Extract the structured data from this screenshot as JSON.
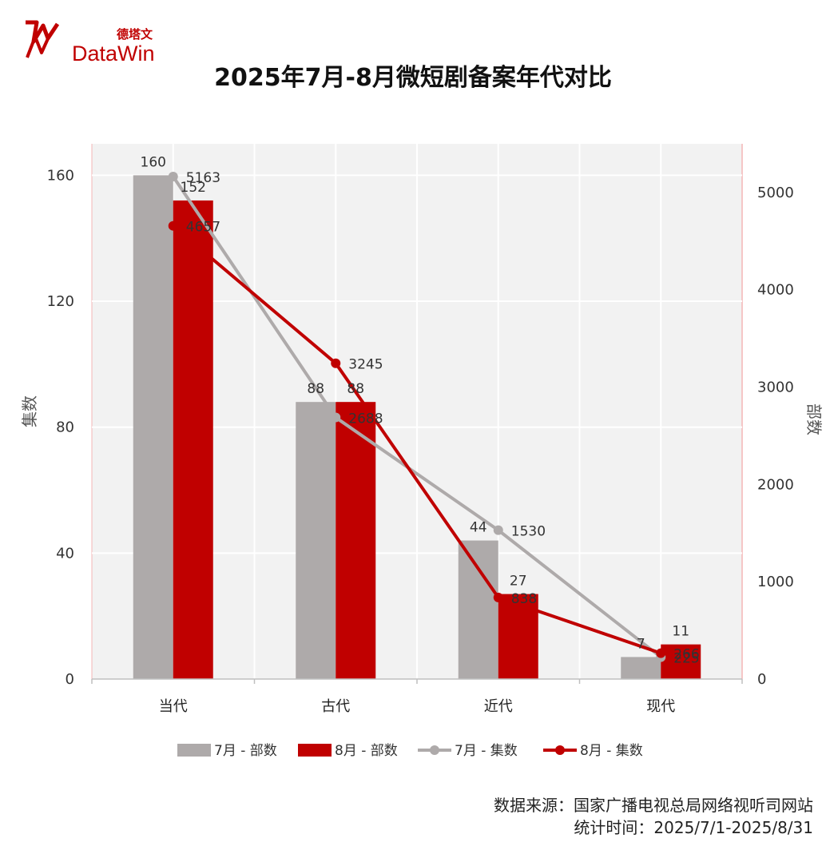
{
  "logo": {
    "brand": "DataWin",
    "brand_cn": "德塔文"
  },
  "title": "2025年7月-8月微短剧备案年代对比",
  "footer": {
    "source": "数据来源：国家广播电视总局网络视听司网站",
    "period": "统计时间：2025/7/1-2025/8/31"
  },
  "colors": {
    "jul": "#aeaaaa",
    "aug": "#c00000",
    "plot_bg": "#f2f2f2"
  },
  "chart_data": {
    "type": "bar",
    "title": "2025年7月-8月微短剧备案年代对比",
    "categories": [
      "当代",
      "古代",
      "近代",
      "现代"
    ],
    "left_axis": {
      "label": "集数",
      "range": [
        0,
        170
      ],
      "ticks": [
        0,
        40,
        80,
        120,
        160
      ]
    },
    "right_axis": {
      "label": "部数",
      "range": [
        0,
        5500
      ],
      "ticks": [
        0,
        1000,
        2000,
        3000,
        4000,
        5000
      ]
    },
    "series": [
      {
        "name": "7月 - 部数",
        "kind": "bar",
        "axis": "left",
        "color": "#aeaaaa",
        "values": [
          160,
          88,
          44,
          7
        ]
      },
      {
        "name": "8月 - 部数",
        "kind": "bar",
        "axis": "left",
        "color": "#c00000",
        "values": [
          152,
          88,
          27,
          11
        ]
      },
      {
        "name": "7月 -  集数",
        "kind": "line",
        "axis": "right",
        "color": "#aeaaaa",
        "values": [
          5163,
          2688,
          1530,
          225
        ]
      },
      {
        "name": "8月 -  集数",
        "kind": "line",
        "axis": "right",
        "color": "#c00000",
        "values": [
          4657,
          3245,
          838,
          266
        ]
      }
    ],
    "grid": true,
    "legend": "bottom"
  }
}
